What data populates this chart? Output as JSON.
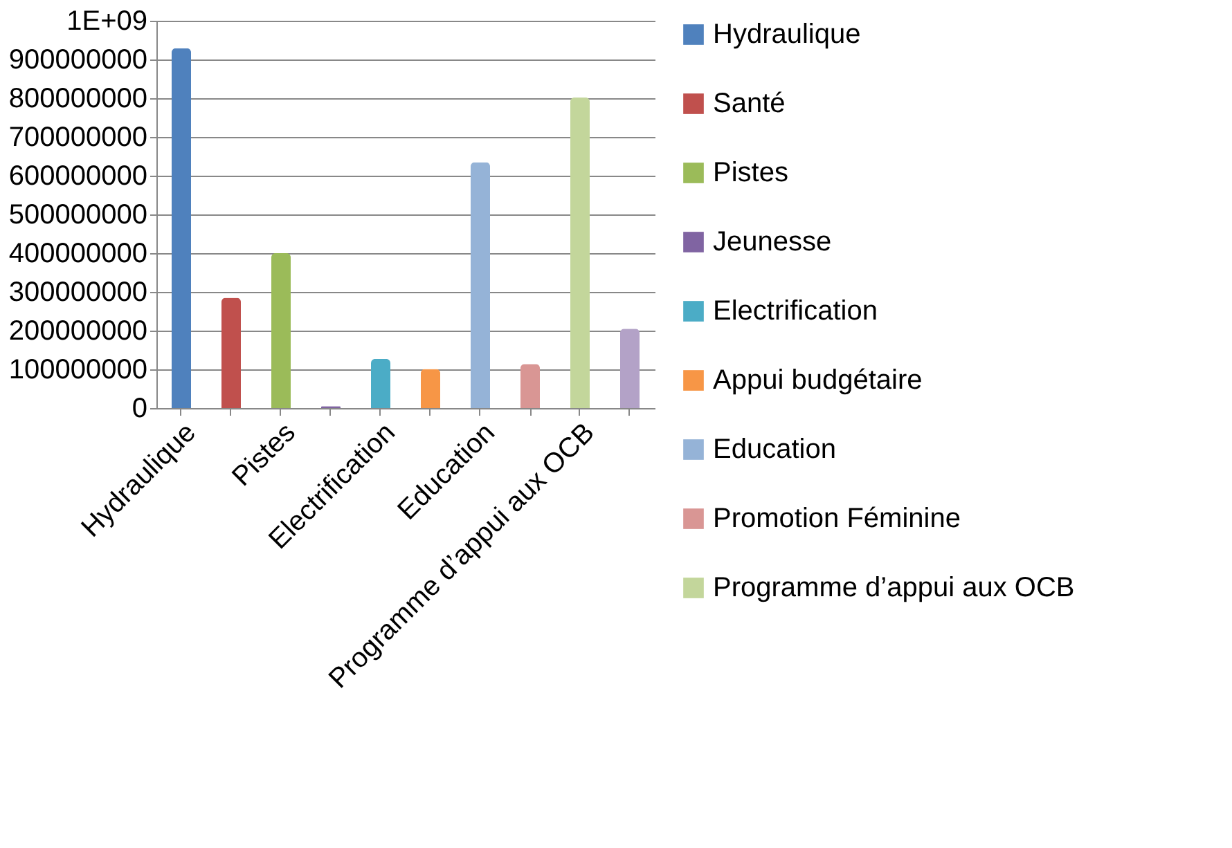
{
  "chart_data": {
    "type": "bar",
    "categories": [
      "Hydraulique",
      null,
      "Pistes",
      null,
      "Electrification",
      null,
      "Education",
      null,
      "Programme d’appui aux OCB",
      null
    ],
    "series": [
      {
        "name": "Hydraulique",
        "color": "#4f81bd",
        "values": [
          929000000,
          null,
          null,
          null,
          null,
          null,
          null,
          null,
          null,
          null
        ]
      },
      {
        "name": "Santé",
        "color": "#c0504d",
        "values": [
          null,
          285000000,
          null,
          null,
          null,
          null,
          null,
          null,
          null,
          null
        ]
      },
      {
        "name": "Pistes",
        "color": "#9bbb59",
        "values": [
          null,
          null,
          400000000,
          null,
          null,
          null,
          null,
          null,
          null,
          null
        ]
      },
      {
        "name": "Jeunesse",
        "color": "#8064a2",
        "values": [
          null,
          null,
          null,
          5000000,
          null,
          null,
          null,
          null,
          null,
          null
        ]
      },
      {
        "name": "Electrification",
        "color": "#4bacc6",
        "values": [
          null,
          null,
          null,
          null,
          127000000,
          null,
          null,
          null,
          null,
          null
        ]
      },
      {
        "name": "Appui budgétaire",
        "color": "#f79646",
        "values": [
          null,
          null,
          null,
          null,
          null,
          101000000,
          null,
          null,
          null,
          null
        ]
      },
      {
        "name": "Education",
        "color": "#95b3d7",
        "values": [
          null,
          null,
          null,
          null,
          null,
          null,
          635000000,
          null,
          null,
          null
        ]
      },
      {
        "name": "Promotion Féminine",
        "color": "#d99694",
        "values": [
          null,
          null,
          null,
          null,
          null,
          null,
          null,
          114000000,
          null,
          null
        ]
      },
      {
        "name": "Programme d’appui aux OCB",
        "color": "#c3d69b",
        "values": [
          null,
          null,
          null,
          null,
          null,
          null,
          null,
          null,
          802000000,
          null
        ]
      },
      {
        "color": "#b3a2c7",
        "values": [
          null,
          null,
          null,
          null,
          null,
          null,
          null,
          null,
          null,
          205000000
        ]
      }
    ],
    "ylim": [
      0,
      1000000000
    ],
    "yticks": [
      0,
      100000000,
      200000000,
      300000000,
      400000000,
      500000000,
      600000000,
      700000000,
      800000000,
      900000000,
      {
        "value": 1000000000,
        "label": "1E+09"
      }
    ],
    "grid": "y",
    "legend": "right"
  }
}
